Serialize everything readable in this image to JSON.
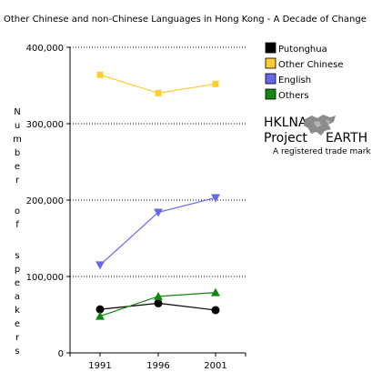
{
  "chart_data": {
    "type": "line",
    "title": "Other Chinese and non-Chinese Languages in Hong Kong - A Decade of Change",
    "xlabel": "",
    "ylabel": "Number of speakers",
    "categories": [
      "1991",
      "1996",
      "2001"
    ],
    "ylim": [
      0,
      400000
    ],
    "yticks": [
      "0",
      "100,000",
      "200,000",
      "300,000",
      "400,000"
    ],
    "ytick_values": [
      0,
      100000,
      200000,
      300000,
      400000
    ],
    "grid": "horizontal dotted",
    "legend_position": "right",
    "series": [
      {
        "name": "Putonghua",
        "color": "#000000",
        "marker": "circle",
        "values": [
          57000,
          65000,
          56000
        ]
      },
      {
        "name": "Other Chinese",
        "color": "#ffcc33",
        "marker": "square",
        "values": [
          364000,
          340000,
          352000
        ]
      },
      {
        "name": "English",
        "color": "#6666ee",
        "marker": "triangle-down",
        "values": [
          115000,
          184000,
          203000
        ]
      },
      {
        "name": "Others",
        "color": "#118811",
        "marker": "triangle-up",
        "values": [
          48000,
          74000,
          79000
        ]
      }
    ]
  },
  "watermark": {
    "line1": "HKLNA",
    "line2_left": "Project",
    "line2_right": "EARTH",
    "line3": "A registered trade mark",
    "logo_icon": "earth-logo-icon"
  }
}
